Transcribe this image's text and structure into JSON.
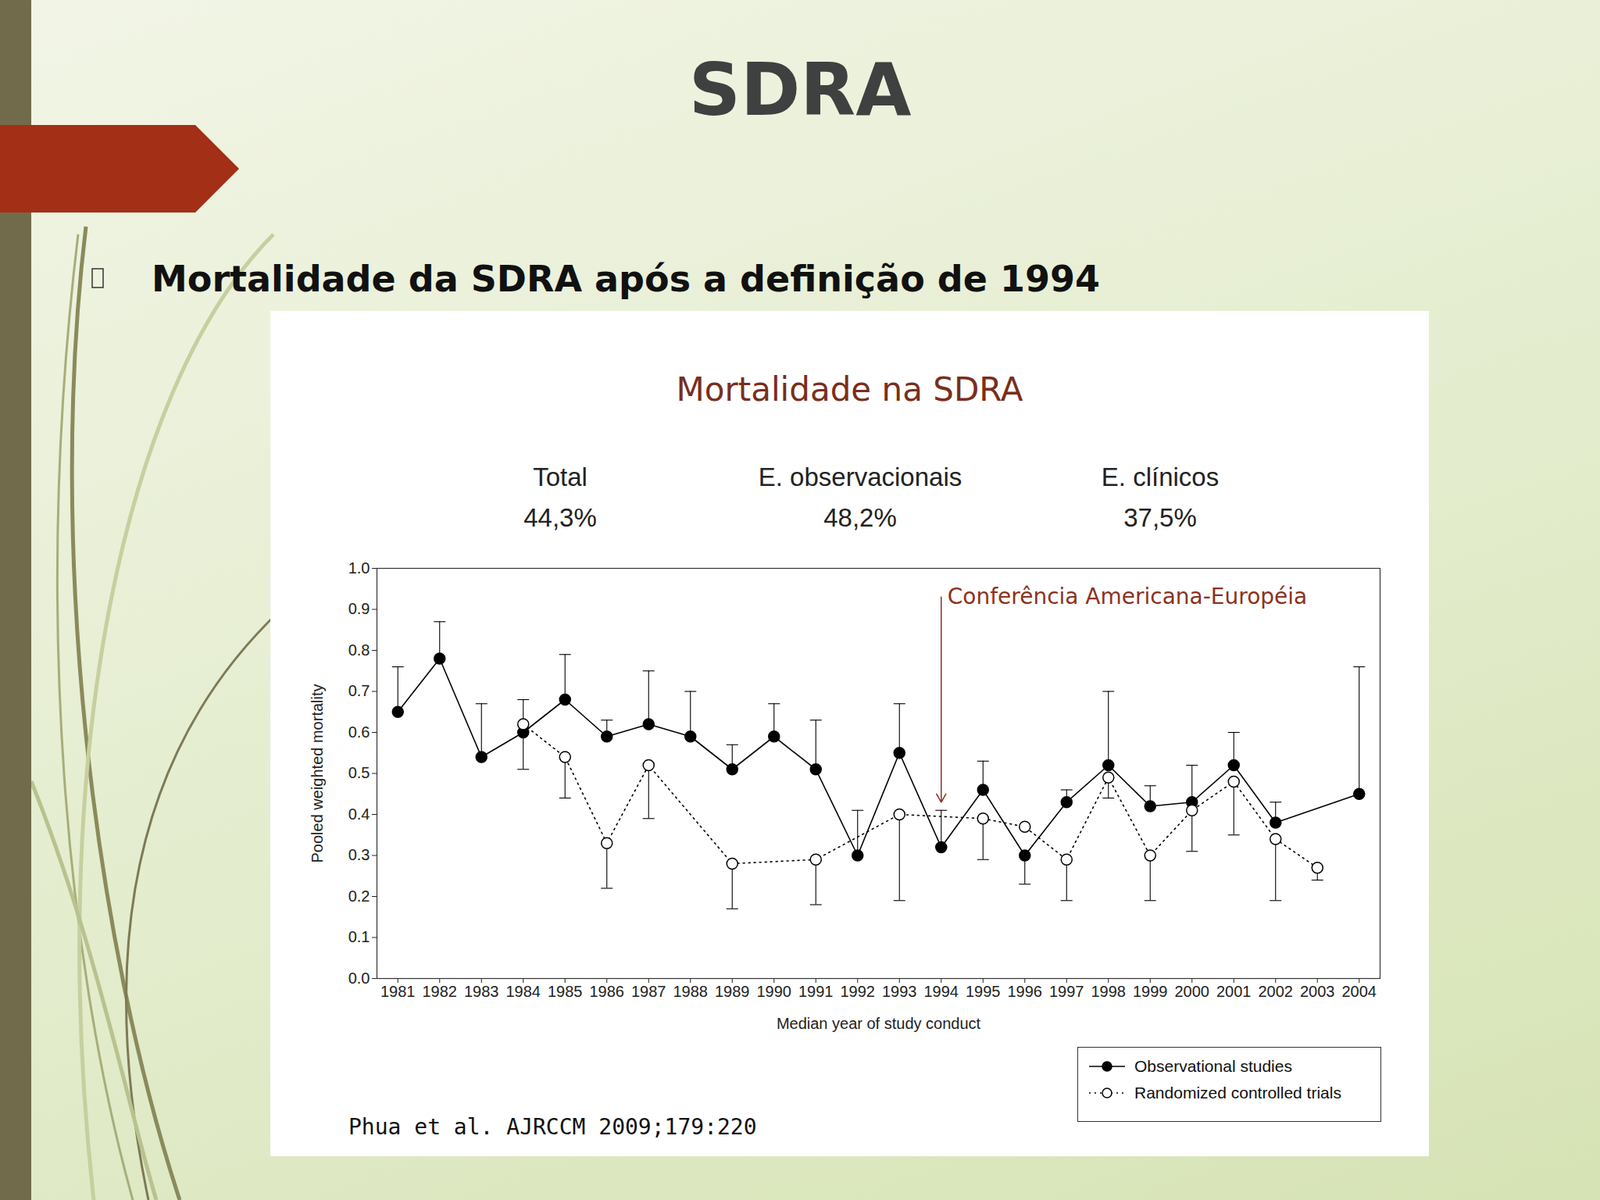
{
  "slide": {
    "title": "SDRA",
    "bullet": "Mortalidade da SDRA após a definição de 1994"
  },
  "chart_data": {
    "type": "line",
    "title": "Mortalidade na SDRA",
    "stats": [
      {
        "label": "Total",
        "value": "44,3%"
      },
      {
        "label": "E. observacionais",
        "value": "48,2%"
      },
      {
        "label": "E. clínicos",
        "value": "37,5%"
      }
    ],
    "x_label": "Median year of study conduct",
    "y_label": "Pooled weighted mortality",
    "xlim": [
      1980.5,
      2004.5
    ],
    "xticks": [
      1981,
      1982,
      1983,
      1984,
      1985,
      1986,
      1987,
      1988,
      1989,
      1990,
      1991,
      1992,
      1993,
      1994,
      1995,
      1996,
      1997,
      1998,
      1999,
      2000,
      2001,
      2002,
      2003,
      2004
    ],
    "ylim": [
      0,
      1
    ],
    "yticks": [
      {
        "value": 0,
        "label": "0.0"
      },
      0.1,
      0.2,
      0.3,
      0.4,
      0.5,
      0.6,
      0.7,
      0.8,
      0.9,
      {
        "value": 1,
        "label": "1.0"
      }
    ],
    "grid": false,
    "legend": "bottom right",
    "series": [
      {
        "name": "Observational studies",
        "color": "#000000",
        "marker": "filled circle",
        "line_style": "solid",
        "x": [
          1981,
          1982,
          1983,
          1984,
          1985,
          1986,
          1987,
          1988,
          1989,
          1990,
          1991,
          1992,
          1993,
          1994,
          1995,
          1996,
          1997,
          1998,
          1999,
          2000,
          2001,
          2002,
          2004
        ],
        "values": [
          0.65,
          0.78,
          0.54,
          0.6,
          0.68,
          0.59,
          0.62,
          0.59,
          0.51,
          0.59,
          0.51,
          0.3,
          0.55,
          0.32,
          0.46,
          0.3,
          0.43,
          0.52,
          0.42,
          0.43,
          0.52,
          0.38,
          0.45
        ],
        "error_high": [
          0.76,
          0.87,
          0.67,
          0.68,
          0.79,
          0.63,
          0.75,
          0.7,
          0.57,
          0.67,
          0.63,
          0.41,
          0.67,
          0.41,
          0.53,
          null,
          0.46,
          0.7,
          0.47,
          0.52,
          0.6,
          0.43,
          0.76
        ],
        "error_low": [
          null,
          null,
          null,
          null,
          null,
          null,
          null,
          null,
          null,
          null,
          null,
          null,
          null,
          null,
          null,
          0.23,
          null,
          null,
          null,
          null,
          null,
          null,
          null
        ]
      },
      {
        "name": "Randomized controlled trials",
        "color": "#000000",
        "marker": "open circle",
        "line_style": "dotted",
        "x": [
          1984,
          1985,
          1986,
          1987,
          1989,
          1991,
          1993,
          1995,
          1996,
          1997,
          1998,
          1999,
          2000,
          2001,
          2002,
          2003
        ],
        "values": [
          0.62,
          0.54,
          0.33,
          0.52,
          0.28,
          0.29,
          0.4,
          0.39,
          0.37,
          0.29,
          0.49,
          0.3,
          0.41,
          0.48,
          0.34,
          0.27
        ],
        "error_low": [
          0.51,
          0.44,
          0.22,
          0.39,
          0.17,
          0.18,
          0.19,
          0.29,
          null,
          0.19,
          0.44,
          0.19,
          0.31,
          0.35,
          0.19,
          0.24
        ]
      }
    ],
    "annotations": [
      {
        "text": "Conferência Americana-Européia",
        "x": 1994,
        "y_from": 0.93,
        "y_to": 0.43,
        "color": "#8b3220"
      }
    ],
    "source": "Phua et al. AJRCCM 2009;179:220"
  }
}
